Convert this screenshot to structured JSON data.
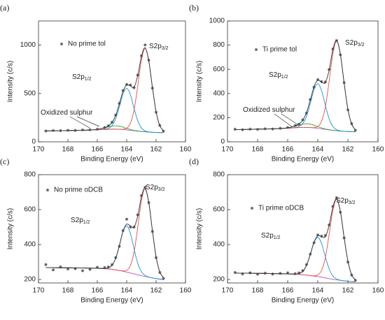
{
  "chart_data": [
    {
      "type": "line",
      "label": "(a)",
      "xlabel": "Binding Energy (eV)",
      "ylabel": "Intensity (c/s)",
      "x": [
        169.5,
        169,
        168.5,
        168,
        167.5,
        167,
        166.5,
        166,
        165.5,
        165.25,
        165,
        164.75,
        164.5,
        164.25,
        164,
        163.75,
        163.5,
        163.25,
        163,
        162.75,
        162.5,
        162.25,
        162,
        161.75,
        161.5
      ],
      "xlim": [
        170,
        160
      ],
      "xticks": [
        170,
        168,
        166,
        164,
        162,
        160
      ],
      "ylim": [
        0,
        1250
      ],
      "yticks": [
        0,
        500,
        1000
      ],
      "series": [
        {
          "name": "No prime tol",
          "style": "markers",
          "color": "#555555",
          "values": [
            112,
            117,
            116,
            119,
            118,
            123,
            125,
            131,
            148,
            166,
            203,
            276,
            398,
            530,
            594,
            588,
            560,
            690,
            889,
            1002,
            845,
            556,
            306,
            170,
            110
          ]
        },
        {
          "color": "#c060c0",
          "values": [
            113,
            114,
            115,
            117,
            118,
            120,
            122,
            125,
            128,
            130,
            131,
            131,
            130,
            127,
            123,
            119,
            115,
            111,
            107,
            104,
            101,
            99,
            97,
            96,
            95
          ]
        },
        {
          "color": "#2ca02c",
          "values": [
            113,
            114,
            115,
            117,
            118,
            120,
            122,
            129,
            144,
            155,
            163,
            166,
            162,
            152,
            139,
            128,
            119,
            113,
            107,
            104,
            101,
            99,
            97,
            96,
            95
          ]
        },
        {
          "color": "#1f8fd6",
          "values": [
            113,
            114,
            115,
            117,
            118,
            120,
            122,
            125,
            130,
            139,
            168,
            238,
            362,
            496,
            553,
            488,
            347,
            218,
            144,
            113,
            103,
            99,
            97,
            96,
            95
          ]
        },
        {
          "color": "#e05050",
          "values": [
            113,
            114,
            115,
            117,
            118,
            120,
            122,
            125,
            128,
            130,
            131,
            131,
            130,
            130,
            141,
            192,
            329,
            575,
            844,
            964,
            838,
            563,
            311,
            169,
            113
          ]
        },
        {
          "color": "#333333",
          "values": [
            113,
            114,
            115,
            117,
            118,
            120,
            122,
            129,
            146,
            164,
            200,
            273,
            394,
            524,
            587,
            578,
            565,
            684,
            881,
            973,
            840,
            563,
            311,
            169,
            113
          ]
        }
      ],
      "annotations": [
        {
          "text": "S2p",
          "sub": "3/2"
        },
        {
          "text": "S2p",
          "sub": "1/2"
        },
        {
          "text": "Oxidized sulphur"
        }
      ]
    },
    {
      "type": "line",
      "label": "(b)",
      "xlabel": "Binding Energy (eV)",
      "ylabel": "Intensity (c/s)",
      "x": [
        169.5,
        169,
        168.5,
        168,
        167.5,
        167,
        166.5,
        166,
        165.5,
        165.25,
        165,
        164.75,
        164.5,
        164.25,
        164,
        163.75,
        163.5,
        163.25,
        163,
        162.75,
        162.5,
        162.25,
        162,
        161.75,
        161.5
      ],
      "xlim": [
        170,
        160
      ],
      "xticks": [
        170,
        168,
        166,
        164,
        162,
        160
      ],
      "ylim": [
        0,
        1000
      ],
      "yticks": [
        0,
        200,
        400,
        600,
        800,
        1000
      ],
      "series": [
        {
          "name": "Ti prime tol",
          "style": "markers",
          "color": "#555555",
          "values": [
            104,
            100,
            105,
            103,
            108,
            106,
            112,
            118,
            135,
            146,
            182,
            238,
            350,
            452,
            515,
            498,
            495,
            598,
            768,
            838,
            720,
            490,
            265,
            150,
            96
          ]
        },
        {
          "color": "#c060c0",
          "values": [
            101,
            102,
            103,
            105,
            106,
            108,
            110,
            113,
            116,
            118,
            119,
            119,
            118,
            115,
            111,
            107,
            103,
            99,
            95,
            92,
            89,
            87,
            85,
            84,
            83
          ]
        },
        {
          "color": "#2ca02c",
          "values": [
            101,
            102,
            103,
            105,
            106,
            108,
            110,
            116,
            130,
            140,
            147,
            149,
            146,
            137,
            125,
            115,
            106,
            101,
            95,
            92,
            89,
            87,
            85,
            84,
            83
          ]
        },
        {
          "color": "#1f8fd6",
          "values": [
            101,
            102,
            103,
            105,
            106,
            108,
            110,
            113,
            118,
            126,
            151,
            211,
            318,
            432,
            481,
            424,
            303,
            191,
            127,
            100,
            91,
            87,
            85,
            84,
            83
          ]
        },
        {
          "color": "#e05050",
          "values": [
            101,
            102,
            103,
            105,
            106,
            108,
            110,
            113,
            116,
            118,
            119,
            119,
            118,
            118,
            126,
            170,
            287,
            498,
            729,
            832,
            723,
            486,
            269,
            147,
            98
          ]
        },
        {
          "color": "#333333",
          "values": [
            101,
            102,
            103,
            105,
            106,
            108,
            110,
            116,
            132,
            148,
            179,
            241,
            346,
            457,
            510,
            495,
            490,
            592,
            761,
            840,
            725,
            486,
            269,
            147,
            98
          ]
        }
      ],
      "annotations": [
        {
          "text": "S2p",
          "sub": "3/2"
        },
        {
          "text": "S2p",
          "sub": "1/2"
        },
        {
          "text": "Oxidized sulphur"
        }
      ]
    },
    {
      "type": "line",
      "label": "(c)",
      "xlabel": "Binding Energy (eV)",
      "ylabel": "Intensity (c/s)",
      "x": [
        169.5,
        169,
        168.5,
        168,
        167.5,
        167,
        166.5,
        166,
        165.5,
        165.25,
        165,
        164.75,
        164.5,
        164.25,
        164,
        163.75,
        163.5,
        163.25,
        163,
        162.75,
        162.5,
        162.25,
        162,
        161.75,
        161.5
      ],
      "xlim": [
        170,
        160
      ],
      "xticks": [
        170,
        168,
        166,
        164,
        162,
        160
      ],
      "ylim": [
        180,
        800
      ],
      "yticks": [
        200,
        400,
        600,
        800
      ],
      "series": [
        {
          "name": "No prime oDCB",
          "style": "markers",
          "color": "#555555",
          "values": [
            285,
            255,
            272,
            260,
            262,
            250,
            258,
            270,
            268,
            272,
            285,
            325,
            390,
            480,
            545,
            500,
            500,
            570,
            680,
            728,
            640,
            475,
            325,
            240,
            205
          ]
        },
        {
          "color": "#c060c0",
          "values": [
            268,
            268,
            267,
            267,
            266,
            266,
            265,
            264,
            262,
            260,
            258,
            255,
            251,
            247,
            242,
            237,
            232,
            227,
            222,
            217,
            213,
            209,
            205,
            202,
            200
          ]
        },
        {
          "color": "#1f8fd6",
          "values": [
            268,
            268,
            267,
            267,
            266,
            266,
            265,
            264,
            263,
            266,
            281,
            321,
            394,
            474,
            507,
            464,
            375,
            293,
            245,
            223,
            214,
            209,
            205,
            202,
            200
          ]
        },
        {
          "color": "#e05050",
          "values": [
            268,
            268,
            267,
            267,
            266,
            266,
            265,
            264,
            262,
            260,
            258,
            255,
            251,
            249,
            252,
            279,
            356,
            497,
            650,
            717,
            641,
            479,
            329,
            244,
            210
          ]
        },
        {
          "color": "#333333",
          "values": [
            268,
            268,
            267,
            267,
            266,
            266,
            265,
            264,
            263,
            266,
            281,
            321,
            394,
            476,
            517,
            506,
            499,
            563,
            673,
            723,
            642,
            479,
            329,
            244,
            210
          ]
        }
      ],
      "annotations": [
        {
          "text": "S2p",
          "sub": "3/2"
        },
        {
          "text": "S2p",
          "sub": "1/2"
        }
      ]
    },
    {
      "type": "line",
      "label": "(d)",
      "xlabel": "Binding Energy (eV)",
      "ylabel": "Intensity (c/s)",
      "x": [
        169.5,
        169,
        168.5,
        168,
        167.5,
        167,
        166.5,
        166,
        165.5,
        165.25,
        165,
        164.75,
        164.5,
        164.25,
        164,
        163.75,
        163.5,
        163.25,
        163,
        162.75,
        162.5,
        162.25,
        162,
        161.75,
        161.5
      ],
      "xlim": [
        170,
        160
      ],
      "xticks": [
        170,
        168,
        166,
        164,
        162,
        160
      ],
      "ylim": [
        180,
        800
      ],
      "yticks": [
        200,
        400,
        600,
        800
      ],
      "series": [
        {
          "name": "Ti prime oDCB",
          "style": "markers",
          "color": "#555555",
          "values": [
            240,
            232,
            238,
            230,
            236,
            231,
            235,
            238,
            233,
            238,
            250,
            285,
            345,
            410,
            455,
            448,
            452,
            512,
            618,
            668,
            585,
            438,
            300,
            225,
            195
          ]
        },
        {
          "color": "#c060c0",
          "values": [
            237,
            236,
            236,
            235,
            235,
            234,
            233,
            232,
            230,
            229,
            227,
            225,
            222,
            219,
            216,
            213,
            209,
            205,
            201,
            198,
            195,
            192,
            190,
            188,
            187
          ]
        },
        {
          "color": "#1f8fd6",
          "values": [
            237,
            236,
            236,
            235,
            235,
            234,
            233,
            232,
            231,
            234,
            246,
            281,
            343,
            412,
            441,
            406,
            330,
            261,
            220,
            203,
            196,
            192,
            190,
            188,
            187
          ]
        },
        {
          "color": "#e05050",
          "values": [
            237,
            236,
            236,
            235,
            235,
            234,
            233,
            232,
            230,
            229,
            227,
            225,
            222,
            221,
            226,
            252,
            324,
            457,
            595,
            658,
            589,
            440,
            305,
            227,
            197
          ]
        },
        {
          "color": "#333333",
          "values": [
            237,
            236,
            236,
            235,
            235,
            234,
            233,
            232,
            231,
            234,
            246,
            281,
            343,
            414,
            451,
            445,
            445,
            509,
            614,
            663,
            590,
            440,
            305,
            227,
            197
          ]
        }
      ],
      "annotations": [
        {
          "text": "S2p",
          "sub": "3/2"
        },
        {
          "text": "S2p",
          "sub": "1/2"
        }
      ]
    }
  ]
}
